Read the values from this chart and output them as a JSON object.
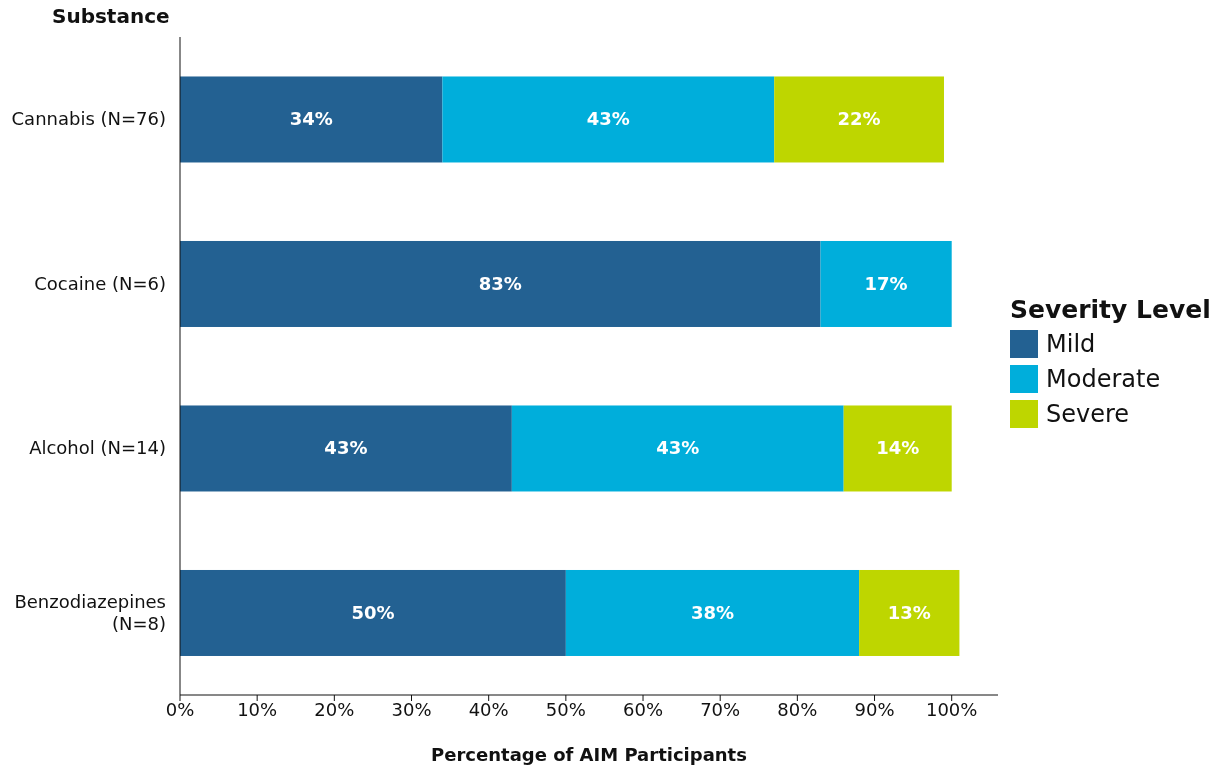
{
  "chart_data": {
    "type": "bar",
    "orientation": "horizontal",
    "stacked": true,
    "ylabel": "Substance",
    "xlabel": "Percentage of AIM Participants",
    "legend_title": "Severity Level",
    "categories": [
      "Cannabis (N=76)",
      "Cocaine (N=6)",
      "Alcohol (N=14)",
      "Benzodiazepines (N=8)"
    ],
    "series": [
      {
        "name": "Mild",
        "color": "#236192",
        "values": [
          34,
          83,
          43,
          50
        ],
        "value_labels": [
          "34%",
          "83%",
          "43%",
          "50%"
        ]
      },
      {
        "name": "Moderate",
        "color": "#00aedb",
        "values": [
          43,
          17,
          43,
          38
        ],
        "value_labels": [
          "43%",
          "17%",
          "43%",
          "38%"
        ]
      },
      {
        "name": "Severe",
        "color": "#bed600",
        "values": [
          22,
          0,
          14,
          13
        ],
        "value_labels": [
          "22%",
          null,
          "14%",
          "13%"
        ]
      }
    ],
    "xlim": [
      0,
      106
    ],
    "xticks": [
      {
        "value": 0,
        "label": "0%"
      },
      {
        "value": 10,
        "label": "10%"
      },
      {
        "value": 20,
        "label": "20%"
      },
      {
        "value": 30,
        "label": "30%"
      },
      {
        "value": 40,
        "label": "40%"
      },
      {
        "value": 50,
        "label": "50%"
      },
      {
        "value": 60,
        "label": "60%"
      },
      {
        "value": 70,
        "label": "70%"
      },
      {
        "value": 80,
        "label": "80%"
      },
      {
        "value": 90,
        "label": "90%"
      },
      {
        "value": 100,
        "label": "100%"
      }
    ],
    "grid": false,
    "legend": "right"
  }
}
